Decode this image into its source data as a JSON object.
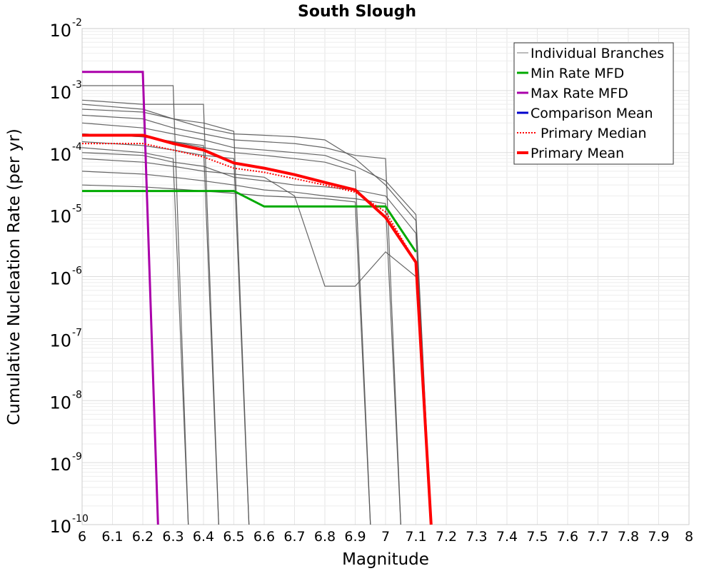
{
  "chart_data": {
    "type": "line",
    "title": "South Slough",
    "xlabel": "Magnitude",
    "ylabel": "Cumulative Nucleation Rate (per yr)",
    "xlim": [
      6,
      8
    ],
    "ylim": [
      1e-10,
      0.01
    ],
    "y_scale": "log",
    "grid": true,
    "legend_position": "top-right",
    "x_ticks": [
      "6",
      "6.1",
      "6.2",
      "6.3",
      "6.4",
      "6.5",
      "6.6",
      "6.7",
      "6.8",
      "6.9",
      "7",
      "7.1",
      "7.2",
      "7.3",
      "7.4",
      "7.5",
      "7.6",
      "7.7",
      "7.8",
      "7.9",
      "8"
    ],
    "y_tick_exponents": [
      "-10",
      "-9",
      "-8",
      "-7",
      "-6",
      "-5",
      "-4",
      "-3",
      "-2"
    ],
    "y_tick_base": "10",
    "legend": [
      {
        "label": "Individual Branches",
        "color": "#777777",
        "style": "thin"
      },
      {
        "label": "Min Rate MFD",
        "color": "#00aa00",
        "style": "solid"
      },
      {
        "label": "Max Rate MFD",
        "color": "#aa00aa",
        "style": "solid"
      },
      {
        "label": "Comparison Mean",
        "color": "#0000cc",
        "style": "solid"
      },
      {
        "label": "Primary Median",
        "color": "#ff0000",
        "style": "dotted"
      },
      {
        "label": "Primary Mean",
        "color": "#ff0000",
        "style": "thick"
      }
    ],
    "series": [
      {
        "name": "Min Rate MFD",
        "color": "#00aa00",
        "x": [
          6.0,
          6.2,
          6.3,
          6.4,
          6.5,
          6.6,
          6.7,
          6.8,
          6.9,
          7.0,
          7.1
        ],
        "y": [
          2.4e-05,
          2.4e-05,
          2.4e-05,
          2.4e-05,
          2.4e-05,
          1.35e-05,
          1.35e-05,
          1.35e-05,
          1.35e-05,
          1.35e-05,
          2.5e-06
        ]
      },
      {
        "name": "Max Rate MFD",
        "color": "#aa00aa",
        "x": [
          6.0,
          6.2,
          6.25
        ],
        "y": [
          0.002,
          0.002,
          1e-10
        ]
      },
      {
        "name": "Primary Median",
        "color": "#ff0000",
        "x": [
          6.0,
          6.2,
          6.3,
          6.4,
          6.5,
          6.6,
          6.7,
          6.8,
          6.9,
          7.0,
          7.1,
          7.15
        ],
        "y": [
          0.00014,
          0.00014,
          0.00011,
          8.5e-05,
          5.6e-05,
          4.8e-05,
          3.8e-05,
          3e-05,
          2.3e-05,
          1.1e-05,
          1.7e-06,
          1e-10
        ]
      },
      {
        "name": "Primary Mean",
        "color": "#ff0000",
        "x": [
          6.0,
          6.2,
          6.3,
          6.4,
          6.5,
          6.6,
          6.7,
          6.8,
          6.9,
          7.0,
          7.1,
          7.15
        ],
        "y": [
          0.00019,
          0.00019,
          0.00014,
          0.00011,
          6.8e-05,
          5.6e-05,
          4.4e-05,
          3.3e-05,
          2.5e-05,
          9e-06,
          1.7e-06,
          1e-10
        ]
      },
      {
        "name": "Individual Branches",
        "color": "#555555",
        "count": 14,
        "branches": [
          {
            "x": [
              6.0,
              6.2,
              6.3,
              6.4,
              6.5,
              6.6,
              6.7,
              6.8,
              6.9,
              7.0,
              7.1,
              7.15
            ],
            "y": [
              0.0006,
              0.0005,
              0.00035,
              0.00025,
              0.0002,
              0.00019,
              0.00018,
              0.00016,
              8e-05,
              3e-05,
              8e-06,
              1e-10
            ]
          },
          {
            "x": [
              6.0,
              6.2,
              6.3,
              6.4,
              6.5,
              6.6,
              6.7,
              6.8,
              6.9,
              7.0,
              7.1,
              7.15
            ],
            "y": [
              0.0003,
              0.00025,
              0.0002,
              0.00016,
              0.00012,
              0.00011,
              0.0001,
              9e-05,
              6e-05,
              3.5e-05,
              1e-05,
              1e-10
            ]
          },
          {
            "x": [
              6.0,
              6.2,
              6.3,
              6.4,
              6.5,
              6.6,
              6.7,
              6.8,
              6.9,
              7.0,
              7.1,
              7.15
            ],
            "y": [
              0.0001,
              9e-05,
              7e-05,
              6e-05,
              4e-05,
              3.5e-05,
              3e-05,
              2.8e-05,
              2.5e-05,
              2e-05,
              5e-06,
              1e-10
            ]
          },
          {
            "x": [
              6.0,
              6.2,
              6.3,
              6.4,
              6.5,
              6.6,
              6.7,
              6.8,
              6.9,
              7.0,
              7.05
            ],
            "y": [
              0.0004,
              0.00035,
              0.00025,
              0.0002,
              0.00016,
              0.00015,
              0.00014,
              0.00012,
              9e-05,
              8e-05,
              1e-10
            ]
          },
          {
            "x": [
              6.0,
              6.2,
              6.3,
              6.4,
              6.5,
              6.6,
              6.7,
              6.8,
              6.9,
              7.0,
              7.05
            ],
            "y": [
              5e-05,
              4.5e-05,
              4e-05,
              3.5e-05,
              3e-05,
              2.5e-05,
              2.3e-05,
              2e-05,
              1.8e-05,
              1.5e-05,
              1e-10
            ]
          },
          {
            "x": [
              6.0,
              6.2,
              6.3,
              6.4,
              6.5,
              6.6,
              6.7,
              6.8,
              6.9,
              6.95
            ],
            "y": [
              0.0002,
              0.00018,
              0.00015,
              0.00012,
              0.0001,
              9e-05,
              8e-05,
              7e-05,
              5e-05,
              1e-10
            ]
          },
          {
            "x": [
              6.0,
              6.2,
              6.3,
              6.4,
              6.5,
              6.6,
              6.7,
              6.8,
              6.9,
              6.95
            ],
            "y": [
              3e-05,
              2.8e-05,
              2.6e-05,
              2.4e-05,
              2.2e-05,
              2e-05,
              1.9e-05,
              1.8e-05,
              1.6e-05,
              1e-10
            ]
          },
          {
            "x": [
              6.0,
              6.2,
              6.3,
              6.4,
              6.5,
              6.6,
              6.7,
              6.8,
              6.9,
              7.0,
              7.1,
              7.15
            ],
            "y": [
              8e-05,
              7e-05,
              6e-05,
              5e-05,
              4.5e-05,
              4e-05,
              2e-05,
              7e-07,
              7e-07,
              2.5e-06,
              1e-06,
              1e-10
            ]
          },
          {
            "x": [
              6.0,
              6.2,
              6.3,
              6.4,
              6.5,
              6.55
            ],
            "y": [
              0.0005,
              0.00045,
              0.00035,
              0.0003,
              0.00022,
              1e-10
            ]
          },
          {
            "x": [
              6.0,
              6.2,
              6.3,
              6.4,
              6.5,
              6.55
            ],
            "y": [
              0.00015,
              0.00013,
              0.00011,
              9e-05,
              8e-05,
              1e-10
            ]
          },
          {
            "x": [
              6.0,
              6.2,
              6.3,
              6.4,
              6.45
            ],
            "y": [
              0.0007,
              0.0006,
              0.0006,
              0.0006,
              1e-10
            ]
          },
          {
            "x": [
              6.0,
              6.2,
              6.3,
              6.4,
              6.45
            ],
            "y": [
              0.0002,
              0.00018,
              0.00015,
              0.00013,
              1e-10
            ]
          },
          {
            "x": [
              6.0,
              6.2,
              6.3,
              6.35
            ],
            "y": [
              0.0012,
              0.0012,
              0.0012,
              1e-10
            ]
          },
          {
            "x": [
              6.0,
              6.2,
              6.3,
              6.35
            ],
            "y": [
              0.00012,
              0.0001,
              8e-05,
              1e-10
            ]
          }
        ]
      }
    ]
  }
}
